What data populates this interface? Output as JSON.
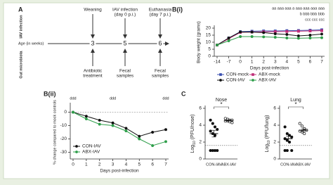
{
  "timeline": {
    "label": "A",
    "row_labels": [
      "IAV infection",
      "Age (in weeks)",
      "Gut microbiota"
    ],
    "events_top": [
      [
        "Weaning"
      ],
      [
        "IAV infection",
        "(day 0 p.i.)"
      ],
      [
        "Euthanasia",
        "(day 7 p.i.)"
      ]
    ],
    "weeks": [
      "3",
      "5",
      "6"
    ],
    "events_bottom": [
      [
        "Antibiotic",
        "treatment"
      ],
      [
        "Fecal",
        "samples"
      ],
      [
        "Fecal",
        "samples"
      ]
    ]
  },
  "chart_data": [
    {
      "type": "line",
      "panel": "B(i)",
      "x_label": "Days post-infection",
      "y_label": "Body weight (grams)",
      "categories": [
        "-14",
        "-7",
        "0",
        "1",
        "2",
        "3",
        "4",
        "5",
        "6",
        "7"
      ],
      "ylim": [
        0,
        20
      ],
      "yticks": [
        0,
        5,
        10,
        15,
        20
      ],
      "series": [
        {
          "name": "CON-mock",
          "color": "#3a4fb0",
          "marker": "square",
          "values": [
            8,
            13,
            17.5,
            17.8,
            18,
            18,
            18.2,
            18.3,
            18.5,
            18.8
          ]
        },
        {
          "name": "ABX-mock",
          "color": "#c0307a",
          "marker": "square",
          "values": [
            8,
            12.5,
            17,
            17.2,
            17.4,
            17.5,
            17.6,
            17.8,
            18,
            18.2
          ]
        },
        {
          "name": "CON-IAV",
          "color": "#111111",
          "marker": "circle",
          "values": [
            8,
            13,
            17.3,
            17.2,
            16.8,
            16,
            15.5,
            14.5,
            15,
            15.8
          ]
        },
        {
          "name": "ABX-IAV",
          "color": "#2e9e4a",
          "marker": "circle",
          "values": [
            8,
            11,
            14,
            14,
            13.8,
            13.5,
            13,
            12.8,
            13,
            13.2
          ]
        }
      ],
      "annotations": [
        "aa aaa aaa a aaa aaa aaa aaa",
        "b bbb bbb bbb",
        "ccc ccc ccc"
      ],
      "legend": "lower left"
    },
    {
      "type": "line",
      "panel": "B(ii)",
      "x_label": "Days post-infection",
      "y_label": "% change compared to mock controls",
      "categories": [
        "0",
        "1",
        "2",
        "3",
        "4",
        "5",
        "6",
        "7"
      ],
      "ylim": [
        -35,
        5
      ],
      "yticks": [
        -30,
        -20,
        -10,
        0
      ],
      "reference_line": 0,
      "series": [
        {
          "name": "CON-IAV",
          "color": "#111111",
          "marker": "circle",
          "values": [
            0,
            -3,
            -6,
            -8,
            -12,
            -18,
            -15,
            -13
          ]
        },
        {
          "name": "ABX-IAV",
          "color": "#2e9e4a",
          "marker": "circle",
          "values": [
            0,
            -5,
            -9,
            -10,
            -14,
            -20,
            -25,
            -22
          ]
        }
      ],
      "annotations": [
        {
          "text": "ddd",
          "x": "0"
        },
        {
          "text": "ddd",
          "x": "3"
        },
        {
          "text": "ddd",
          "x": "7"
        }
      ],
      "legend": "lower left"
    },
    {
      "type": "dot",
      "panel": "C",
      "title": "Nose",
      "y_label": [
        "Log",
        "10",
        " (PFU/nose)"
      ],
      "categories": [
        "CON-IAV",
        "ABX-IAV"
      ],
      "fill": [
        true,
        false
      ],
      "points": [
        [
          4.6,
          4.2,
          3.8,
          3.5,
          3.3,
          3.0,
          2.8,
          1.0,
          1.0,
          1.0,
          1.0
        ],
        [
          4.8,
          4.7,
          4.6,
          4.6,
          4.5,
          4.5,
          4.4,
          4.3
        ]
      ],
      "means": [
        3.0,
        4.55
      ],
      "errors": [
        0.4,
        0.06
      ],
      "ylim": [
        0,
        6
      ],
      "yticks": [
        0,
        2,
        4,
        6
      ],
      "detection_limit": 1.6,
      "significance": "*"
    },
    {
      "type": "dot",
      "title": "Lung",
      "y_label": [
        "Log",
        "10",
        " (PFU/lung)"
      ],
      "categories": [
        "CON-IAV",
        "ABX-IAV"
      ],
      "fill": [
        true,
        false
      ],
      "points": [
        [
          3.8,
          3.0,
          2.8,
          2.6,
          2.4,
          2.2,
          2.0,
          1.0,
          1.0,
          1.0
        ],
        [
          4.2,
          3.9,
          3.6,
          3.4,
          3.3,
          3.2,
          3.0
        ]
      ],
      "means": [
        2.4,
        3.4
      ],
      "errors": [
        0.3,
        0.15
      ],
      "ylim": [
        0,
        6
      ],
      "yticks": [
        0,
        2,
        4,
        6
      ],
      "detection_limit": 1.6,
      "significance": "*"
    }
  ]
}
